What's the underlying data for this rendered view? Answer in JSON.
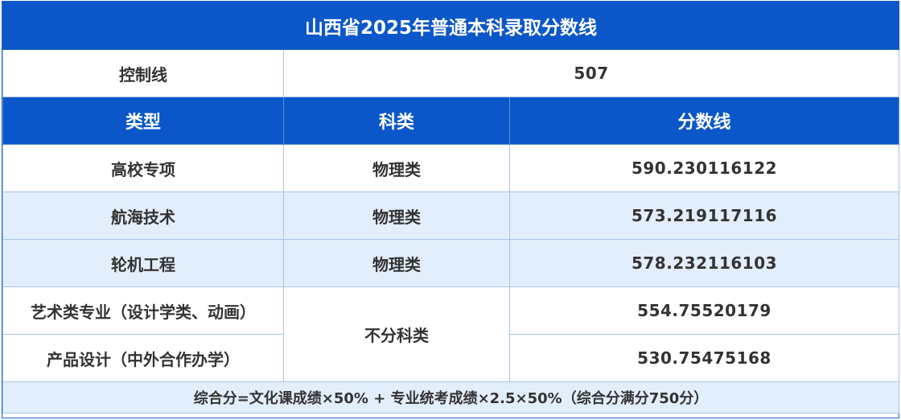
{
  "title": "山西省2025年普通本科录取分数线",
  "control_line": {
    "label": "控制线",
    "value": "507"
  },
  "headers": {
    "type": "类型",
    "subject": "科类",
    "score": "分数线"
  },
  "rows": [
    {
      "type": "高校专项",
      "subject": "物理类",
      "score": "590.230116122"
    },
    {
      "type": "航海技术",
      "subject": "物理类",
      "score": "573.219117116"
    },
    {
      "type": "轮机工程",
      "subject": "物理类",
      "score": "578.232116103"
    },
    {
      "type": "艺术类专业（设计学类、动画）",
      "subject": "不分科类",
      "score": "554.75520179"
    },
    {
      "type": "产品设计（中外合作办学）",
      "subject": "不分科类",
      "score": "530.75475168"
    }
  ],
  "footer": "综合分=文化课成绩×50% + 专业统考成绩×2.5×50%（综合分满分750分）",
  "colors": {
    "header_blue": "#0b57c9",
    "row_tint": "#e3eefc",
    "border": "#a9c3e6"
  }
}
